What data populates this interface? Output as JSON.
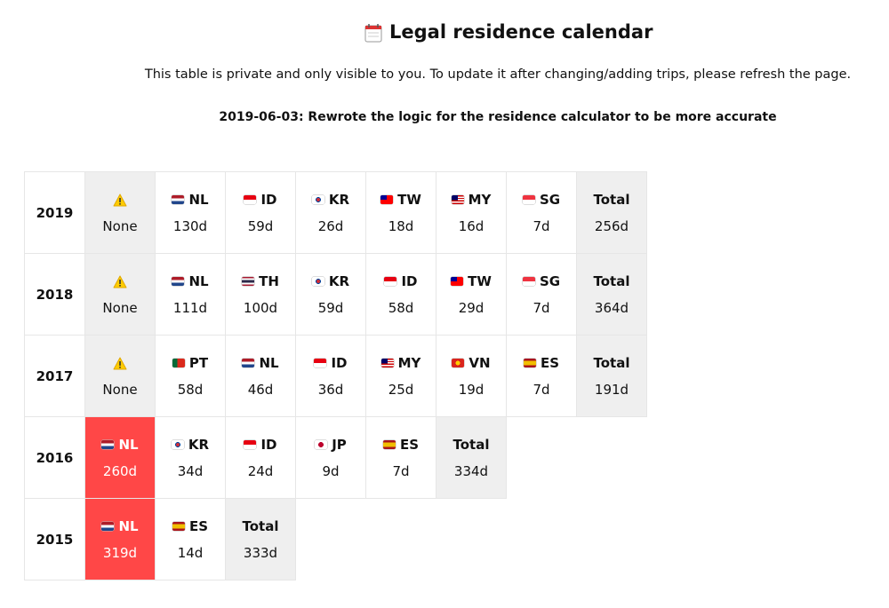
{
  "header": {
    "title": "Legal residence calendar",
    "subtitle": "This table is private and only visible to you. To update it after changing/adding trips, please refresh the page.",
    "note": "2019-06-03: Rewrote the logic for the residence calculator to be more accurate"
  },
  "table": {
    "rows": [
      {
        "year": "2019",
        "cells": [
          {
            "label": "None",
            "color": "#efefef"
          },
          {
            "name": "NL",
            "days": "130d"
          },
          {
            "name": "ID",
            "days": "59d"
          },
          {
            "name": "KR",
            "days": "26d"
          },
          {
            "name": "TW",
            "days": "18d"
          },
          {
            "name": "MY",
            "days": "16d"
          },
          {
            "name": "SG",
            "days": "7d"
          },
          {
            "name": "Total",
            "days": "256d",
            "color": "#efefef"
          }
        ]
      },
      {
        "year": "2018",
        "cells": [
          {
            "label": "None",
            "color": "#efefef"
          },
          {
            "name": "NL",
            "days": "111d"
          },
          {
            "name": "TH",
            "days": "100d"
          },
          {
            "name": "KR",
            "days": "59d"
          },
          {
            "name": "ID",
            "days": "58d"
          },
          {
            "name": "TW",
            "days": "29d"
          },
          {
            "name": "SG",
            "days": "7d"
          },
          {
            "name": "Total",
            "days": "364d",
            "color": "#efefef"
          }
        ]
      },
      {
        "year": "2017",
        "cells": [
          {
            "label": "None",
            "color": "#efefef"
          },
          {
            "name": "PT",
            "days": "58d"
          },
          {
            "name": "NL",
            "days": "46d"
          },
          {
            "name": "ID",
            "days": "36d"
          },
          {
            "name": "MY",
            "days": "25d"
          },
          {
            "name": "VN",
            "days": "19d"
          },
          {
            "name": "ES",
            "days": "7d"
          },
          {
            "name": "Total",
            "days": "191d",
            "color": "#efefef"
          }
        ]
      },
      {
        "year": "2016",
        "cells": [
          {
            "name": "NL",
            "days": "260d",
            "color": "#ff4747"
          },
          {
            "name": "KR",
            "days": "34d"
          },
          {
            "name": "ID",
            "days": "24d"
          },
          {
            "name": "JP",
            "days": "9d"
          },
          {
            "name": "ES",
            "days": "7d"
          },
          {
            "name": "Total",
            "days": "334d",
            "color": "#efefef"
          }
        ]
      },
      {
        "year": "2015",
        "cells": [
          {
            "name": "NL",
            "days": "319d",
            "color": "#ff4747"
          },
          {
            "name": "ES",
            "days": "14d"
          },
          {
            "name": "Total",
            "days": "333d",
            "color": "#efefef"
          }
        ]
      }
    ]
  }
}
